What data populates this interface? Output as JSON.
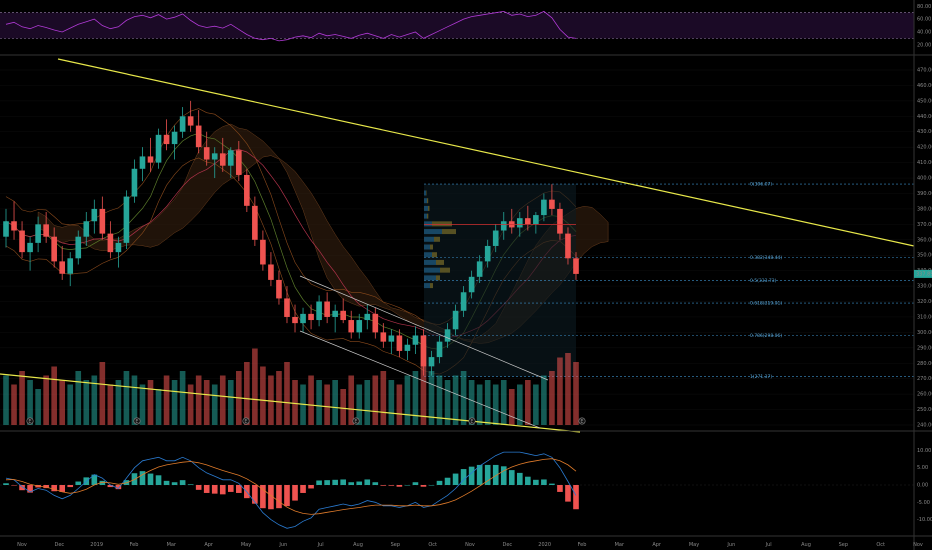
{
  "chart_data": {
    "type": "candlestick",
    "colors": {
      "background": "#000000",
      "up": "#26a69a",
      "down": "#ef5350",
      "trendline": "#e8e84a",
      "rsi_line": "#b13ad6",
      "rsi_band": "#1b0a26",
      "fib_line": "#3d8fc9",
      "vp_up": "#2c89c9",
      "vp_down": "#c9a227",
      "price_tag": "#26a69a",
      "macd_line": "#2a7bd1",
      "signal_line": "#e07b2a"
    },
    "x_axis": {
      "labels": [
        "Nov",
        "Dec",
        "2019",
        "Feb",
        "Mar",
        "Apr",
        "May",
        "Jun",
        "Jul",
        "Aug",
        "Sep",
        "Oct",
        "Nov",
        "Dec",
        "2020",
        "Feb",
        "Mar",
        "Apr",
        "May",
        "Jun",
        "Jul",
        "Aug",
        "Sep",
        "Oct",
        "Nov"
      ]
    },
    "price_axis": {
      "ticks": [
        "470.00",
        "460.00",
        "450.00",
        "440.00",
        "430.00",
        "420.00",
        "410.00",
        "400.00",
        "390.00",
        "380.00",
        "370.00",
        "360.00",
        "350.00",
        "340.00",
        "330.00",
        "320.00",
        "310.00",
        "300.00",
        "290.00",
        "280.00",
        "270.00",
        "260.00",
        "250.00",
        "240.00"
      ],
      "range": [
        240,
        470
      ],
      "current_price": "337.89"
    },
    "rsi_axis": {
      "ticks": [
        "80.00",
        "60.00",
        "40.00",
        "20.00"
      ],
      "range": [
        15,
        82
      ]
    },
    "macd_axis": {
      "ticks": [
        "10.00",
        "5.00",
        "0.00",
        "-5.00",
        "-10.00"
      ],
      "range": [
        -13,
        13
      ]
    },
    "fib_levels": [
      {
        "label": "0(396.07)",
        "price": 396.07
      },
      {
        "label": "0.382(348.44)",
        "price": 348.44
      },
      {
        "label": "0.5(333.73)",
        "price": 333.73
      },
      {
        "label": "0.618(319.01)",
        "price": 319.01
      },
      {
        "label": "0.786(298.06)",
        "price": 298.06
      },
      {
        "label": "1(271.37)",
        "price": 271.37
      }
    ],
    "event_markers": [
      "E",
      "E",
      "E",
      "E",
      "E",
      "E"
    ],
    "price_series": [
      {
        "i": 0,
        "o": 362,
        "h": 380,
        "l": 355,
        "c": 372
      },
      {
        "i": 1,
        "o": 372,
        "h": 385,
        "l": 360,
        "c": 366
      },
      {
        "i": 2,
        "o": 366,
        "h": 372,
        "l": 348,
        "c": 352
      },
      {
        "i": 3,
        "o": 352,
        "h": 362,
        "l": 340,
        "c": 358
      },
      {
        "i": 4,
        "o": 358,
        "h": 375,
        "l": 352,
        "c": 370
      },
      {
        "i": 5,
        "o": 370,
        "h": 378,
        "l": 358,
        "c": 362
      },
      {
        "i": 6,
        "o": 362,
        "h": 368,
        "l": 342,
        "c": 346
      },
      {
        "i": 7,
        "o": 346,
        "h": 356,
        "l": 334,
        "c": 338
      },
      {
        "i": 8,
        "o": 338,
        "h": 352,
        "l": 330,
        "c": 348
      },
      {
        "i": 9,
        "o": 348,
        "h": 366,
        "l": 344,
        "c": 362
      },
      {
        "i": 10,
        "o": 362,
        "h": 378,
        "l": 356,
        "c": 372
      },
      {
        "i": 11,
        "o": 372,
        "h": 386,
        "l": 364,
        "c": 380
      },
      {
        "i": 12,
        "o": 380,
        "h": 388,
        "l": 360,
        "c": 364
      },
      {
        "i": 13,
        "o": 364,
        "h": 372,
        "l": 348,
        "c": 352
      },
      {
        "i": 14,
        "o": 352,
        "h": 362,
        "l": 342,
        "c": 358
      },
      {
        "i": 15,
        "o": 358,
        "h": 392,
        "l": 354,
        "c": 388
      },
      {
        "i": 16,
        "o": 388,
        "h": 412,
        "l": 384,
        "c": 406
      },
      {
        "i": 17,
        "o": 406,
        "h": 420,
        "l": 398,
        "c": 414
      },
      {
        "i": 18,
        "o": 414,
        "h": 426,
        "l": 404,
        "c": 410
      },
      {
        "i": 19,
        "o": 410,
        "h": 432,
        "l": 406,
        "c": 428
      },
      {
        "i": 20,
        "o": 428,
        "h": 438,
        "l": 418,
        "c": 422
      },
      {
        "i": 21,
        "o": 422,
        "h": 434,
        "l": 412,
        "c": 430
      },
      {
        "i": 22,
        "o": 430,
        "h": 446,
        "l": 426,
        "c": 440
      },
      {
        "i": 23,
        "o": 440,
        "h": 450,
        "l": 430,
        "c": 434
      },
      {
        "i": 24,
        "o": 434,
        "h": 444,
        "l": 416,
        "c": 420
      },
      {
        "i": 25,
        "o": 420,
        "h": 430,
        "l": 408,
        "c": 412
      },
      {
        "i": 26,
        "o": 412,
        "h": 420,
        "l": 400,
        "c": 416
      },
      {
        "i": 27,
        "o": 416,
        "h": 426,
        "l": 404,
        "c": 408
      },
      {
        "i": 28,
        "o": 408,
        "h": 420,
        "l": 400,
        "c": 418
      },
      {
        "i": 29,
        "o": 418,
        "h": 424,
        "l": 398,
        "c": 402
      },
      {
        "i": 30,
        "o": 402,
        "h": 406,
        "l": 378,
        "c": 382
      },
      {
        "i": 31,
        "o": 382,
        "h": 388,
        "l": 356,
        "c": 360
      },
      {
        "i": 32,
        "o": 360,
        "h": 366,
        "l": 340,
        "c": 344
      },
      {
        "i": 33,
        "o": 344,
        "h": 352,
        "l": 330,
        "c": 334
      },
      {
        "i": 34,
        "o": 334,
        "h": 340,
        "l": 318,
        "c": 322
      },
      {
        "i": 35,
        "o": 322,
        "h": 330,
        "l": 306,
        "c": 310
      },
      {
        "i": 36,
        "o": 310,
        "h": 318,
        "l": 300,
        "c": 306
      },
      {
        "i": 37,
        "o": 306,
        "h": 316,
        "l": 300,
        "c": 312
      },
      {
        "i": 38,
        "o": 312,
        "h": 318,
        "l": 302,
        "c": 308
      },
      {
        "i": 39,
        "o": 308,
        "h": 324,
        "l": 304,
        "c": 320
      },
      {
        "i": 40,
        "o": 320,
        "h": 326,
        "l": 306,
        "c": 310
      },
      {
        "i": 41,
        "o": 310,
        "h": 318,
        "l": 300,
        "c": 314
      },
      {
        "i": 42,
        "o": 314,
        "h": 322,
        "l": 306,
        "c": 308
      },
      {
        "i": 43,
        "o": 308,
        "h": 314,
        "l": 296,
        "c": 300
      },
      {
        "i": 44,
        "o": 300,
        "h": 312,
        "l": 296,
        "c": 308
      },
      {
        "i": 45,
        "o": 308,
        "h": 318,
        "l": 302,
        "c": 312
      },
      {
        "i": 46,
        "o": 312,
        "h": 316,
        "l": 296,
        "c": 300
      },
      {
        "i": 47,
        "o": 300,
        "h": 306,
        "l": 290,
        "c": 294
      },
      {
        "i": 48,
        "o": 294,
        "h": 302,
        "l": 286,
        "c": 298
      },
      {
        "i": 49,
        "o": 298,
        "h": 302,
        "l": 284,
        "c": 288
      },
      {
        "i": 50,
        "o": 288,
        "h": 296,
        "l": 282,
        "c": 292
      },
      {
        "i": 51,
        "o": 292,
        "h": 304,
        "l": 286,
        "c": 298
      },
      {
        "i": 52,
        "o": 298,
        "h": 302,
        "l": 272,
        "c": 278
      },
      {
        "i": 53,
        "o": 278,
        "h": 288,
        "l": 272,
        "c": 284
      },
      {
        "i": 54,
        "o": 284,
        "h": 298,
        "l": 280,
        "c": 294
      },
      {
        "i": 55,
        "o": 294,
        "h": 306,
        "l": 290,
        "c": 302
      },
      {
        "i": 56,
        "o": 302,
        "h": 318,
        "l": 298,
        "c": 314
      },
      {
        "i": 57,
        "o": 314,
        "h": 330,
        "l": 310,
        "c": 326
      },
      {
        "i": 58,
        "o": 326,
        "h": 340,
        "l": 322,
        "c": 336
      },
      {
        "i": 59,
        "o": 336,
        "h": 350,
        "l": 332,
        "c": 346
      },
      {
        "i": 60,
        "o": 346,
        "h": 360,
        "l": 342,
        "c": 356
      },
      {
        "i": 61,
        "o": 356,
        "h": 370,
        "l": 352,
        "c": 366
      },
      {
        "i": 62,
        "o": 366,
        "h": 378,
        "l": 360,
        "c": 372
      },
      {
        "i": 63,
        "o": 372,
        "h": 380,
        "l": 364,
        "c": 368
      },
      {
        "i": 64,
        "o": 368,
        "h": 378,
        "l": 362,
        "c": 374
      },
      {
        "i": 65,
        "o": 374,
        "h": 382,
        "l": 366,
        "c": 370
      },
      {
        "i": 66,
        "o": 370,
        "h": 378,
        "l": 364,
        "c": 376
      },
      {
        "i": 67,
        "o": 376,
        "h": 390,
        "l": 372,
        "c": 386
      },
      {
        "i": 68,
        "o": 386,
        "h": 396,
        "l": 376,
        "c": 380
      },
      {
        "i": 69,
        "o": 380,
        "h": 384,
        "l": 360,
        "c": 364
      },
      {
        "i": 70,
        "o": 364,
        "h": 368,
        "l": 344,
        "c": 348
      },
      {
        "i": 71,
        "o": 348,
        "h": 352,
        "l": 334,
        "c": 337.89
      }
    ],
    "rsi_series": [
      52,
      55,
      48,
      45,
      50,
      47,
      43,
      40,
      46,
      52,
      56,
      60,
      50,
      45,
      48,
      58,
      64,
      66,
      62,
      67,
      60,
      63,
      68,
      58,
      50,
      47,
      49,
      46,
      52,
      44,
      36,
      30,
      28,
      30,
      26,
      28,
      32,
      34,
      31,
      38,
      34,
      36,
      33,
      30,
      35,
      38,
      34,
      30,
      36,
      32,
      36,
      40,
      30,
      36,
      42,
      48,
      54,
      60,
      64,
      66,
      68,
      70,
      72,
      66,
      68,
      64,
      66,
      72,
      62,
      44,
      32,
      30
    ],
    "macd_series": [
      {
        "m": 2.0,
        "s": 1.5
      },
      {
        "m": 1.5,
        "s": 1.6
      },
      {
        "m": -0.5,
        "s": 1.0
      },
      {
        "m": -2.0,
        "s": 0.2
      },
      {
        "m": -1.0,
        "s": -0.3
      },
      {
        "m": -1.5,
        "s": -0.6
      },
      {
        "m": -3.0,
        "s": -1.2
      },
      {
        "m": -4.0,
        "s": -2.0
      },
      {
        "m": -3.0,
        "s": -2.4
      },
      {
        "m": -1.0,
        "s": -2.0
      },
      {
        "m": 1.0,
        "s": -1.2
      },
      {
        "m": 3.0,
        "s": 0.0
      },
      {
        "m": 2.0,
        "s": 0.8
      },
      {
        "m": 0.0,
        "s": 0.6
      },
      {
        "m": -1.0,
        "s": 0.2
      },
      {
        "m": 2.0,
        "s": 0.6
      },
      {
        "m": 5.0,
        "s": 1.6
      },
      {
        "m": 7.0,
        "s": 3.0
      },
      {
        "m": 7.5,
        "s": 4.2
      },
      {
        "m": 8.0,
        "s": 5.2
      },
      {
        "m": 7.0,
        "s": 5.8
      },
      {
        "m": 7.0,
        "s": 6.2
      },
      {
        "m": 8.0,
        "s": 6.6
      },
      {
        "m": 7.0,
        "s": 6.8
      },
      {
        "m": 5.0,
        "s": 6.4
      },
      {
        "m": 3.5,
        "s": 5.8
      },
      {
        "m": 2.5,
        "s": 5.0
      },
      {
        "m": 1.5,
        "s": 4.2
      },
      {
        "m": 1.5,
        "s": 3.5
      },
      {
        "m": 0.5,
        "s": 2.8
      },
      {
        "m": -2.0,
        "s": 1.8
      },
      {
        "m": -5.0,
        "s": 0.4
      },
      {
        "m": -8.0,
        "s": -1.3
      },
      {
        "m": -10.0,
        "s": -3.0
      },
      {
        "m": -11.5,
        "s": -4.8
      },
      {
        "m": -12.5,
        "s": -6.4
      },
      {
        "m": -12.0,
        "s": -7.5
      },
      {
        "m": -10.5,
        "s": -8.2
      },
      {
        "m": -9.5,
        "s": -8.5
      },
      {
        "m": -7.0,
        "s": -8.3
      },
      {
        "m": -6.5,
        "s": -7.9
      },
      {
        "m": -6.0,
        "s": -7.5
      },
      {
        "m": -5.5,
        "s": -7.1
      },
      {
        "m": -6.0,
        "s": -6.8
      },
      {
        "m": -5.5,
        "s": -6.5
      },
      {
        "m": -4.5,
        "s": -6.1
      },
      {
        "m": -5.0,
        "s": -5.8
      },
      {
        "m": -6.0,
        "s": -5.8
      },
      {
        "m": -6.0,
        "s": -5.8
      },
      {
        "m": -6.5,
        "s": -6.0
      },
      {
        "m": -6.0,
        "s": -6.0
      },
      {
        "m": -5.0,
        "s": -5.8
      },
      {
        "m": -6.5,
        "s": -6.0
      },
      {
        "m": -6.0,
        "s": -6.0
      },
      {
        "m": -4.5,
        "s": -5.7
      },
      {
        "m": -3.0,
        "s": -5.1
      },
      {
        "m": -1.0,
        "s": -4.3
      },
      {
        "m": 1.5,
        "s": -3.1
      },
      {
        "m": 3.5,
        "s": -1.8
      },
      {
        "m": 5.5,
        "s": -0.3
      },
      {
        "m": 7.0,
        "s": 1.2
      },
      {
        "m": 8.5,
        "s": 2.7
      },
      {
        "m": 9.5,
        "s": 4.1
      },
      {
        "m": 9.5,
        "s": 5.2
      },
      {
        "m": 9.5,
        "s": 6.0
      },
      {
        "m": 9.0,
        "s": 6.6
      },
      {
        "m": 8.5,
        "s": 7.0
      },
      {
        "m": 9.0,
        "s": 7.4
      },
      {
        "m": 8.0,
        "s": 7.6
      },
      {
        "m": 5.0,
        "s": 7.0
      },
      {
        "m": 1.0,
        "s": 5.8
      },
      {
        "m": -3.0,
        "s": 4.0
      }
    ],
    "volume_series": [
      0.55,
      0.45,
      0.6,
      0.5,
      0.4,
      0.55,
      0.65,
      0.5,
      0.45,
      0.6,
      0.5,
      0.55,
      0.7,
      0.45,
      0.5,
      0.6,
      0.55,
      0.45,
      0.5,
      0.4,
      0.55,
      0.5,
      0.6,
      0.45,
      0.55,
      0.5,
      0.45,
      0.55,
      0.5,
      0.6,
      0.7,
      0.85,
      0.65,
      0.55,
      0.6,
      0.7,
      0.5,
      0.45,
      0.55,
      0.5,
      0.45,
      0.5,
      0.4,
      0.55,
      0.45,
      0.5,
      0.55,
      0.6,
      0.5,
      0.45,
      0.55,
      0.6,
      0.9,
      0.6,
      0.55,
      0.5,
      0.55,
      0.6,
      0.5,
      0.45,
      0.5,
      0.45,
      0.5,
      0.4,
      0.45,
      0.5,
      0.45,
      0.55,
      0.6,
      0.75,
      0.8,
      0.7
    ]
  }
}
